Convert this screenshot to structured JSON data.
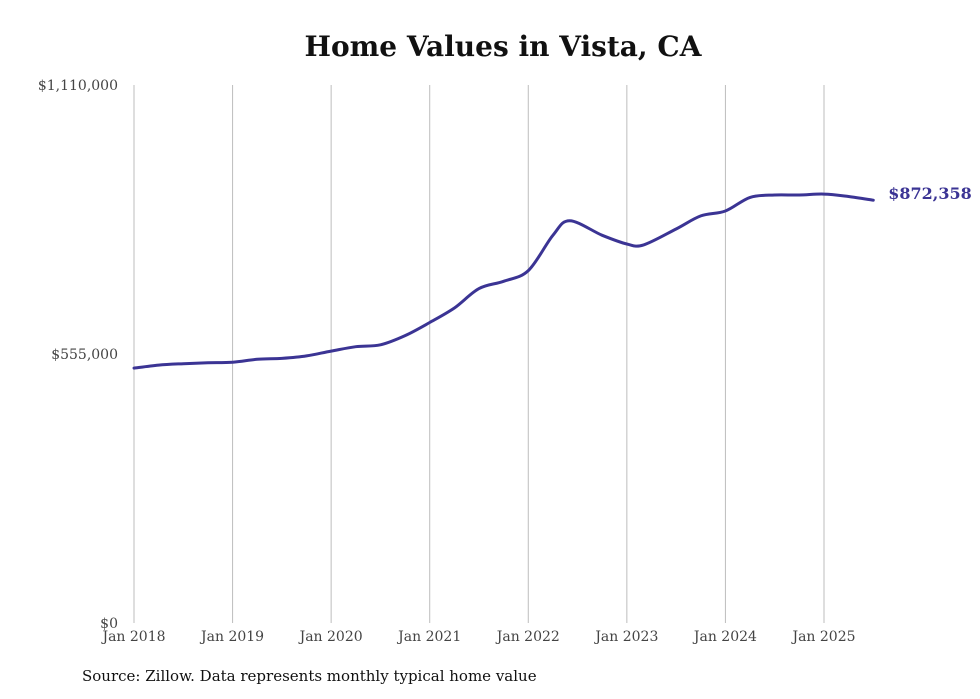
{
  "chart_data": {
    "type": "line",
    "title": "Home Values in Vista, CA",
    "xlabel": "",
    "ylabel": "",
    "ylim": [
      0,
      1110000
    ],
    "y_ticks": [
      0,
      555000,
      1110000
    ],
    "y_tick_labels": [
      "$0",
      "$555,000",
      "$1,110,000"
    ],
    "x_ticks": [
      2018,
      2019,
      2020,
      2021,
      2022,
      2023,
      2024,
      2025
    ],
    "x_tick_labels": [
      "Jan 2018",
      "Jan 2019",
      "Jan 2020",
      "Jan 2021",
      "Jan 2022",
      "Jan 2023",
      "Jan 2024",
      "Jan 2025"
    ],
    "grid": "vertical",
    "line_color": "#3b3494",
    "end_label": "$872,358",
    "series": [
      {
        "x": [
          2018.0,
          2018.25,
          2018.5,
          2018.75,
          2019.0,
          2019.25,
          2019.5,
          2019.75,
          2020.0,
          2020.25,
          2020.5,
          2020.75,
          2021.0,
          2021.25,
          2021.5,
          2021.75,
          2022.0,
          2022.25,
          2022.42,
          2022.75,
          2023.0,
          2023.17,
          2023.5,
          2023.75,
          2024.0,
          2024.25,
          2024.5,
          2024.75,
          2025.0,
          2025.25,
          2025.5
        ],
        "y": [
          526000,
          532000,
          535000,
          537000,
          538000,
          544000,
          546000,
          551000,
          561000,
          570000,
          574000,
          593000,
          620000,
          650000,
          690000,
          705000,
          727000,
          800000,
          830000,
          800000,
          782000,
          780000,
          813000,
          840000,
          850000,
          878000,
          883000,
          883000,
          885000,
          880000,
          872358
        ]
      }
    ]
  },
  "source_note": "Source: Zillow. Data represents monthly typical home value"
}
